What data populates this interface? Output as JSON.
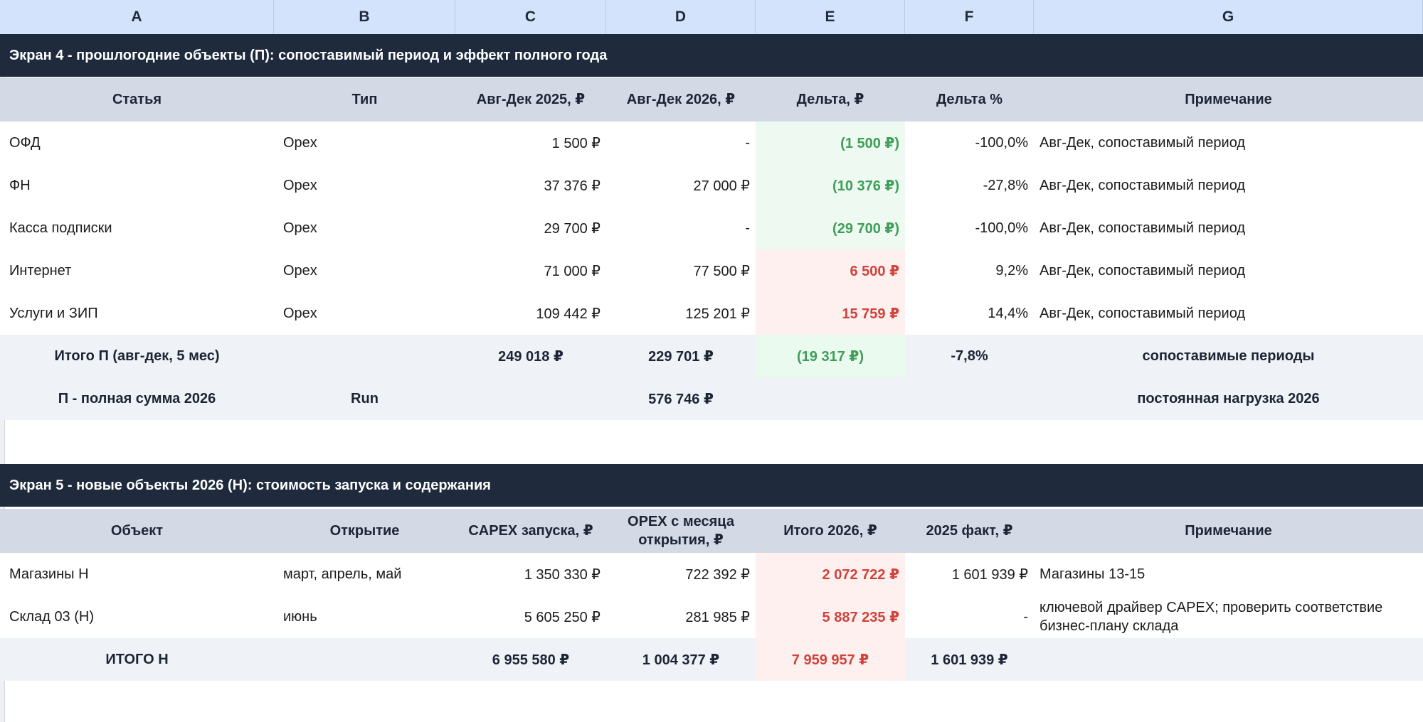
{
  "columns": [
    "A",
    "B",
    "C",
    "D",
    "E",
    "F",
    "G"
  ],
  "screen4": {
    "title": "Экран 4 - прошлогодние объекты (П): сопоставимый период и эффект полного года",
    "headers": [
      "Статья",
      "Тип",
      "Авг-Дек 2025, ₽",
      "Авг-Дек 2026, ₽",
      "Дельта, ₽",
      "Дельта %",
      "Примечание"
    ],
    "rows": [
      {
        "item": "ОФД",
        "type": "Opex",
        "y2025": "1 500 ₽",
        "y2026": "-",
        "delta": "(1 500 ₽)",
        "pct": "-100,0%",
        "note": "Авг-Дек, сопоставимый период"
      },
      {
        "item": "ФН",
        "type": "Opex",
        "y2025": "37 376 ₽",
        "y2026": "27 000 ₽",
        "delta": "(10 376 ₽)",
        "pct": "-27,8%",
        "note": "Авг-Дек, сопоставимый период"
      },
      {
        "item": "Касса подписки",
        "type": "Opex",
        "y2025": "29 700 ₽",
        "y2026": "-",
        "delta": "(29 700 ₽)",
        "pct": "-100,0%",
        "note": "Авг-Дек, сопоставимый период"
      },
      {
        "item": "Интернет",
        "type": "Opex",
        "y2025": "71 000 ₽",
        "y2026": "77 500 ₽",
        "delta": "6 500 ₽",
        "pct": "9,2%",
        "note": "Авг-Дек, сопоставимый период"
      },
      {
        "item": "Услуги и ЗИП",
        "type": "Opex",
        "y2025": "109 442 ₽",
        "y2026": "125 201 ₽",
        "delta": "15 759 ₽",
        "pct": "14,4%",
        "note": "Авг-Дек, сопоставимый период"
      }
    ],
    "total": {
      "label": "Итого П (авг-дек, 5 мес)",
      "y2025": "249 018 ₽",
      "y2026": "229 701 ₽",
      "delta": "(19 317 ₽)",
      "pct": "-7,8%",
      "note": "сопоставимые периоды"
    },
    "full": {
      "label": "П - полная сумма 2026",
      "type": "Run",
      "y2026": "576 746 ₽",
      "note": "постоянная нагрузка 2026"
    }
  },
  "screen5": {
    "title": "Экран 5 - новые объекты 2026 (Н): стоимость запуска и содержания",
    "headers": [
      "Объект",
      "Открытие",
      "CAPEX запуска, ₽",
      "OPEX с месяца открытия, ₽",
      "Итого 2026, ₽",
      "2025 факт, ₽",
      "Примечание"
    ],
    "rows": [
      {
        "item": "Магазины Н",
        "open": "март, апрель, май",
        "capex": "1 350 330 ₽",
        "opex": "722 392 ₽",
        "total": "2 072 722 ₽",
        "fact": "1 601 939 ₽",
        "note": "Магазины 13-15"
      },
      {
        "item": "Склад 03 (Н)",
        "open": "июнь",
        "capex": "5 605 250 ₽",
        "opex": "281 985 ₽",
        "total": "5 887 235 ₽",
        "fact": "-",
        "note": "ключевой драйвер CAPEX; проверить соответствие бизнес-плану склада"
      }
    ],
    "total": {
      "label": "ИТОГО Н",
      "capex": "6 955 580 ₽",
      "opex": "1 004 377 ₽",
      "total": "7 959 957 ₽",
      "fact": "1 601 939 ₽"
    }
  }
}
